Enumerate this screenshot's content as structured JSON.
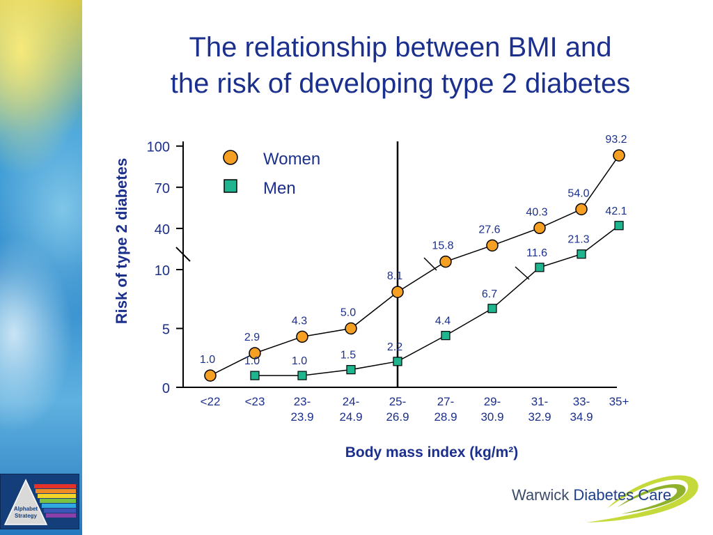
{
  "title_lines": [
    "The relationship between BMI and",
    "the risk of developing type 2 diabetes"
  ],
  "colors": {
    "title": "#1b2f8c",
    "women": "#f5a023",
    "men": "#1fb58f",
    "axis": "#000000"
  },
  "logo_left": {
    "label_1": "Alphabet",
    "label_2": "Strategy"
  },
  "logo_right": {
    "text_1": "Warwick",
    "text_2": "Diabetes Care"
  },
  "chart_data": {
    "type": "line",
    "xlabel": "Body mass index (kg/m²)",
    "ylabel": "Risk of type 2 diabetes",
    "y_scale": "broken (linear 0–10, compressed 10–100)",
    "y_ticks": [
      "0",
      "5",
      "10",
      "40",
      "70",
      "100"
    ],
    "categories": [
      "<22",
      "<23",
      "23-23.9",
      "24-24.9",
      "25-26.9",
      "27-28.9",
      "29-30.9",
      "31-32.9",
      "33-34.9",
      "35+"
    ],
    "category_labels": [
      [
        "<22",
        ""
      ],
      [
        "<23",
        ""
      ],
      [
        "23-",
        "23.9"
      ],
      [
        "24-",
        "24.9"
      ],
      [
        "25-",
        "26.9"
      ],
      [
        "27-",
        "28.9"
      ],
      [
        "29-",
        "30.9"
      ],
      [
        "31-",
        "32.9"
      ],
      [
        "33-",
        "34.9"
      ],
      [
        "35+",
        ""
      ]
    ],
    "series": [
      {
        "name": "Women",
        "marker": "circle",
        "values": [
          1.0,
          2.9,
          4.3,
          5.0,
          8.1,
          15.8,
          27.6,
          40.3,
          54.0,
          93.2
        ],
        "labels": [
          "1.0",
          "2.9",
          "4.3",
          "5.0",
          "8.1",
          "15.8",
          "27.6",
          "40.3",
          "54.0",
          "93.2"
        ]
      },
      {
        "name": "Men",
        "marker": "square",
        "values": [
          null,
          1.0,
          1.0,
          1.5,
          2.2,
          4.4,
          6.7,
          11.6,
          21.3,
          42.1
        ],
        "labels": [
          null,
          "1.0",
          "1.0",
          "1.5",
          "2.2",
          "4.4",
          "6.7",
          "11.6",
          "21.3",
          "42.1"
        ]
      }
    ],
    "reference_line": "25-26.9",
    "grid": false,
    "legend_position": "top-left"
  }
}
